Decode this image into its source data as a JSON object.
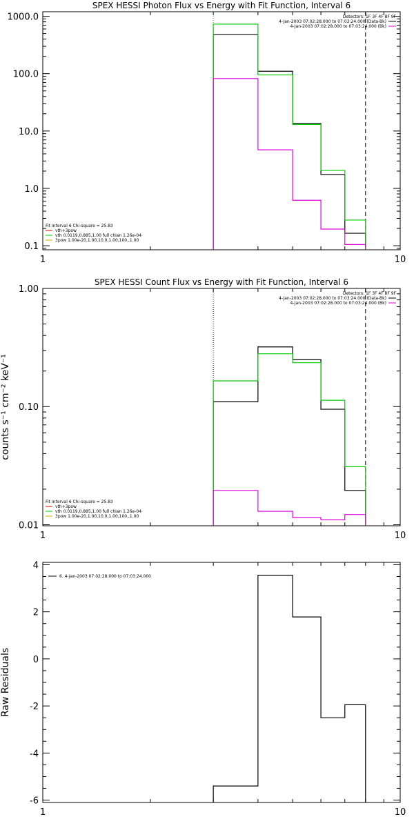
{
  "chart_data": [
    {
      "type": "line",
      "title": "SPEX HESSI Photon Flux vs Energy with Fit Function, Interval 6",
      "xlabel": "",
      "ylabel": "",
      "xscale": "log",
      "yscale": "log",
      "xlim": [
        1,
        10
      ],
      "ylim": [
        0.085,
        1200
      ],
      "x_ticks": [
        "1",
        "10"
      ],
      "y_ticks": [
        "1000.0",
        "100.0",
        "10.0",
        "1.0",
        "0.1"
      ],
      "y_tick_values": [
        1000,
        100,
        10,
        1,
        0.1
      ],
      "vlines": [
        {
          "x": 3.0,
          "style": "dotted",
          "color": "#00bb00"
        },
        {
          "x": 8.0,
          "style": "dashed",
          "color": "#000000"
        }
      ],
      "x_edges": [
        3.0,
        4.0,
        5.0,
        6.0,
        7.0,
        8.0
      ],
      "series": [
        {
          "name": "",
          "color": "#000000",
          "values": [
            480,
            110,
            13.5,
            1.75,
            0.165
          ]
        },
        {
          "name": "",
          "color": "#00cc00",
          "values": [
            730,
            95,
            13.0,
            2.05,
            0.28
          ]
        },
        {
          "name": "",
          "color": "#dd00dd",
          "values": [
            82,
            4.7,
            0.62,
            0.195,
            0.105
          ]
        }
      ],
      "legend_top": {
        "lines": [
          {
            "text": "Detectors: 1F 3F 4F 8F 9F",
            "color": ""
          },
          {
            "text": "4-Jan-2003 07:02:28.000 to 07:03:24.000 (Data-Bk)",
            "color": "#000000"
          },
          {
            "text": "4-Jan-2003 07:02:28.000 to 07:03:24.000 (Bk)",
            "color": "#dd00dd"
          }
        ]
      },
      "legend_bottom": {
        "header": "Fit Interval 6   Chi-square = 25.83",
        "lines": [
          {
            "text": "vth+3pow",
            "color": "#dd0000"
          },
          {
            "text": "vth 0.0119,0.885,1.00  full chian 1.26e-04",
            "color": "#00cc00"
          },
          {
            "text": "3pow 1.00e-20,1.00,10.0,1.00,100.,1.00",
            "color": "#ddaa00"
          }
        ]
      }
    },
    {
      "type": "line",
      "title": "SPEX HESSI Count Flux vs Energy with Fit Function, Interval 6",
      "xlabel": "",
      "ylabel": "counts s⁻¹ cm⁻² keV⁻¹",
      "xscale": "log",
      "yscale": "log",
      "xlim": [
        1,
        10
      ],
      "ylim": [
        0.0098,
        1.0
      ],
      "x_ticks": [
        "1",
        "10"
      ],
      "y_ticks": [
        "1.00",
        "0.10",
        "0.01"
      ],
      "y_tick_values": [
        1.0,
        0.1,
        0.01
      ],
      "vlines": [
        {
          "x": 3.0,
          "style": "dotted",
          "color": "#000000"
        },
        {
          "x": 8.0,
          "style": "dashed",
          "color": "#000000"
        }
      ],
      "x_edges": [
        3.0,
        4.0,
        5.0,
        6.0,
        7.0,
        8.0
      ],
      "series": [
        {
          "name": "",
          "color": "#000000",
          "values": [
            0.11,
            0.32,
            0.25,
            0.095,
            0.0195
          ]
        },
        {
          "name": "",
          "color": "#00cc00",
          "values": [
            0.165,
            0.28,
            0.235,
            0.113,
            0.031
          ]
        },
        {
          "name": "",
          "color": "#dd00dd",
          "values": [
            0.0195,
            0.013,
            0.0115,
            0.011,
            0.0122
          ]
        }
      ],
      "legend_top": {
        "lines": [
          {
            "text": "Detectors: 1F 3F 4F 8F 9F",
            "color": ""
          },
          {
            "text": "4-Jan-2003 07:02:28.000 to 07:03:24.000 (Data-Bk)",
            "color": "#000000"
          },
          {
            "text": "4-Jan-2003 07:02:28.000 to 07:03:24.000 (Bk)",
            "color": "#dd00dd"
          }
        ]
      },
      "legend_bottom": {
        "header": "Fit Interval 6   Chi-square = 25.83",
        "lines": [
          {
            "text": "vth+3pow",
            "color": "#dd0000"
          },
          {
            "text": "vth 0.0119,0.885,1.00  full chian 1.26e-04",
            "color": "#00cc00"
          },
          {
            "text": "3pow 1.00e-20,1.00,10.0,1.00,100.,1.00",
            "color": "#ddaa00"
          }
        ]
      }
    },
    {
      "type": "line",
      "title": "",
      "xlabel": "",
      "ylabel": "Raw Residuals",
      "xscale": "log",
      "yscale": "linear",
      "xlim": [
        1,
        10
      ],
      "ylim": [
        -6.1,
        4.1
      ],
      "x_ticks": [
        "1",
        "10"
      ],
      "y_ticks": [
        "4",
        "2",
        "0",
        "-2",
        "-4",
        "-6"
      ],
      "y_tick_values": [
        4,
        2,
        0,
        -2,
        -4,
        -6
      ],
      "vlines": [],
      "x_edges": [
        3.0,
        4.0,
        5.0,
        6.0,
        7.0,
        8.0
      ],
      "series": [
        {
          "name": "",
          "color": "#000000",
          "values": [
            -5.4,
            3.55,
            1.78,
            -2.5,
            -1.95
          ]
        }
      ],
      "legend_top": {
        "lines": [
          {
            "text": "6.  4-Jan-2003 07:02:28.000 to 07:03:24.000",
            "color": "#000000"
          }
        ]
      },
      "legend_bottom": null
    }
  ]
}
